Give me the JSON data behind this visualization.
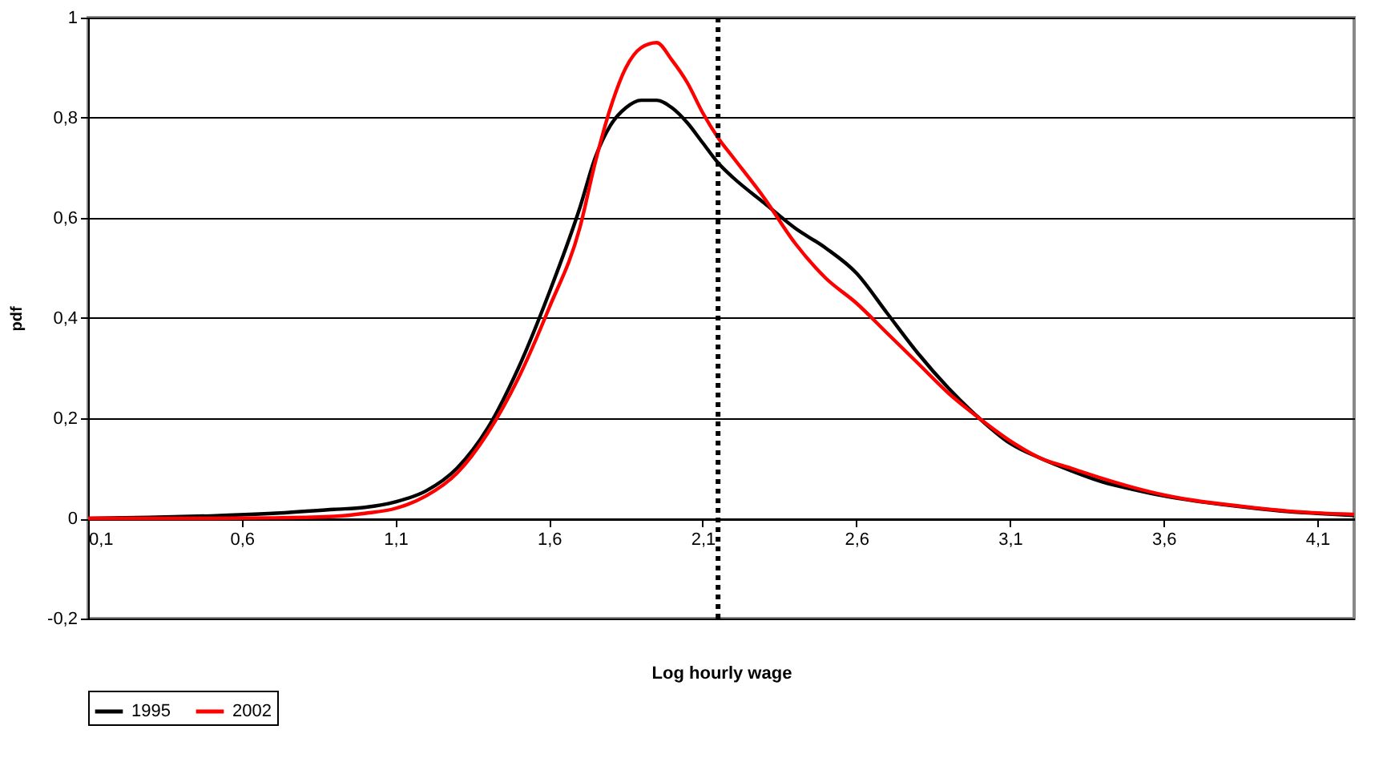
{
  "chart_data": {
    "type": "line",
    "xlabel": "Log hourly wage",
    "ylabel": "pdf",
    "x": [
      0.1,
      0.3,
      0.5,
      0.7,
      0.9,
      1.0,
      1.1,
      1.2,
      1.3,
      1.4,
      1.5,
      1.6,
      1.7,
      1.75,
      1.8,
      1.85,
      1.9,
      1.95,
      2.0,
      2.05,
      2.1,
      2.15,
      2.2,
      2.3,
      2.4,
      2.5,
      2.6,
      2.7,
      2.8,
      2.9,
      3.0,
      3.1,
      3.2,
      3.3,
      3.4,
      3.5,
      3.6,
      3.7,
      3.8,
      3.9,
      4.0,
      4.1,
      4.22
    ],
    "series": [
      {
        "name": "1995",
        "color": "#000000",
        "values": [
          0,
          0.002,
          0.005,
          0.01,
          0.018,
          0.022,
          0.033,
          0.055,
          0.1,
          0.18,
          0.3,
          0.45,
          0.62,
          0.72,
          0.785,
          0.82,
          0.835,
          0.835,
          0.82,
          0.79,
          0.75,
          0.71,
          0.68,
          0.63,
          0.58,
          0.54,
          0.49,
          0.41,
          0.33,
          0.26,
          0.2,
          0.15,
          0.12,
          0.095,
          0.073,
          0.058,
          0.045,
          0.035,
          0.027,
          0.02,
          0.014,
          0.01,
          0.006
        ]
      },
      {
        "name": "2002",
        "color": "#ff0000",
        "values": [
          0,
          0,
          0,
          0.001,
          0.004,
          0.01,
          0.02,
          0.045,
          0.09,
          0.17,
          0.28,
          0.42,
          0.58,
          0.71,
          0.82,
          0.9,
          0.94,
          0.95,
          0.915,
          0.87,
          0.81,
          0.76,
          0.72,
          0.64,
          0.55,
          0.48,
          0.43,
          0.37,
          0.31,
          0.25,
          0.2,
          0.155,
          0.12,
          0.1,
          0.08,
          0.062,
          0.047,
          0.036,
          0.028,
          0.021,
          0.015,
          0.011,
          0.008
        ]
      }
    ],
    "xlim": [
      0.1,
      4.22
    ],
    "xticks": [
      {
        "value": 0.1,
        "label": "0,1"
      },
      {
        "value": 0.6,
        "label": "0,6"
      },
      {
        "value": 1.1,
        "label": "1,1"
      },
      {
        "value": 1.6,
        "label": "1,6"
      },
      {
        "value": 2.1,
        "label": "2,1"
      },
      {
        "value": 2.6,
        "label": "2,6"
      },
      {
        "value": 3.1,
        "label": "3,1"
      },
      {
        "value": 3.6,
        "label": "3,6"
      },
      {
        "value": 4.1,
        "label": "4,1"
      }
    ],
    "ylim": [
      -0.2,
      1
    ],
    "yticks": [
      {
        "value": -0.2,
        "label": "-0,2"
      },
      0,
      {
        "value": 0.2,
        "label": "0,2"
      },
      {
        "value": 0.4,
        "label": "0,4"
      },
      {
        "value": 0.6,
        "label": "0,6"
      },
      {
        "value": 0.8,
        "label": "0,8"
      },
      1
    ],
    "ref_lines": [
      {
        "axis": "x",
        "value": 2.15,
        "color": "#000000",
        "line_style": "dotted"
      }
    ],
    "grid": "y",
    "legend": "bottom",
    "line_style": "solid",
    "marker": "none"
  }
}
